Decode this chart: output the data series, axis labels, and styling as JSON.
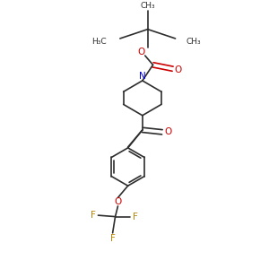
{
  "background_color": "#ffffff",
  "bond_color": "#2d2d2d",
  "oxygen_color": "#cc0000",
  "nitrogen_color": "#0000cc",
  "fluorine_color": "#b8860b",
  "line_width": 1.2,
  "figsize": [
    3.0,
    3.0
  ],
  "dpi": 100,
  "xlim": [
    0,
    10
  ],
  "ylim": [
    0,
    10
  ]
}
